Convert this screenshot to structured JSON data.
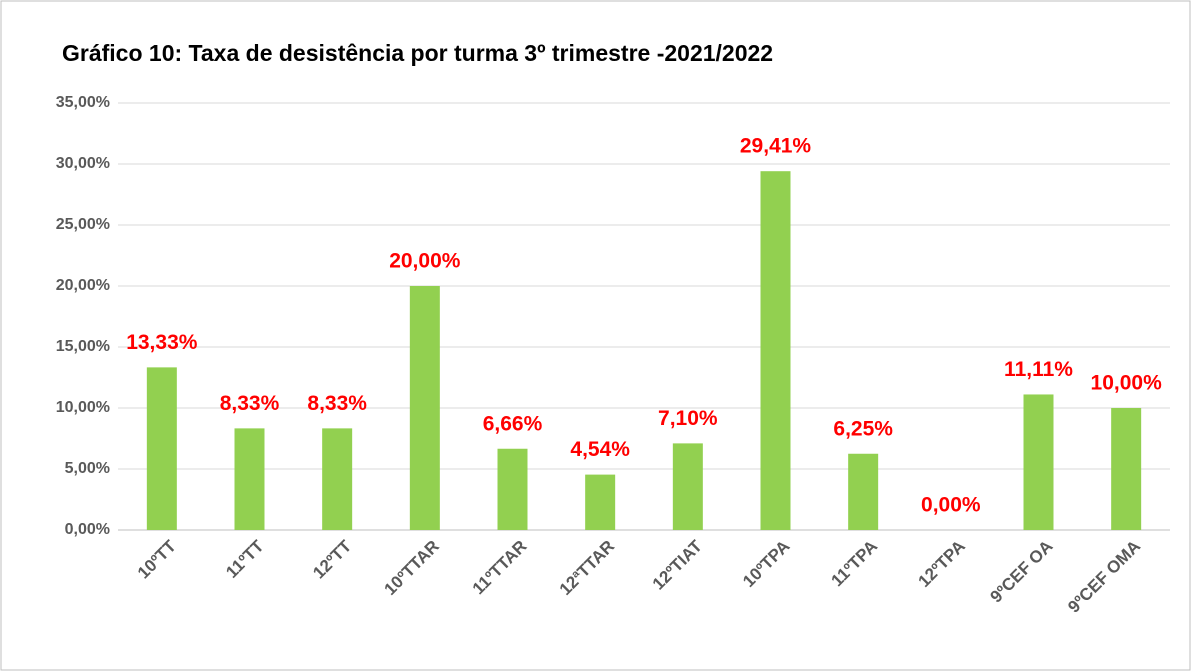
{
  "chart_data": {
    "type": "bar",
    "title": "Gráfico 10: Taxa de desistência por turma 3º trimestre -2021/2022",
    "categories": [
      "10ºTT",
      "11ºTT",
      "12ºTT",
      "10ºTTAR",
      "11ºTTAR",
      "12ªTTAR",
      "12ºTIAT",
      "10ºTPA",
      "11ºTPA",
      "12ºTPA",
      "9ºCEF OA",
      "9ºCEF OMA"
    ],
    "values": [
      13.33,
      8.33,
      8.33,
      20,
      6.66,
      4.54,
      7.1,
      29.41,
      6.25,
      0,
      11.11,
      10
    ],
    "value_labels": [
      "13,33%",
      "8,33%",
      "8,33%",
      "20,00%",
      "6,66%",
      "4,54%",
      "7,10%",
      "29,41%",
      "6,25%",
      "0,00%",
      "11,11%",
      "10,00%"
    ],
    "color": "#92d050",
    "ylim": [
      0,
      35
    ],
    "yticks": [
      {
        "value": 0,
        "label": "0,00%"
      },
      {
        "value": 5,
        "label": "5,00%"
      },
      {
        "value": 10,
        "label": "10,00%"
      },
      {
        "value": 15,
        "label": "15,00%"
      },
      {
        "value": 20,
        "label": "20,00%"
      },
      {
        "value": 25,
        "label": "25,00%"
      },
      {
        "value": 30,
        "label": "30,00%"
      },
      {
        "value": 35,
        "label": "35,00%"
      }
    ],
    "grid": true
  }
}
